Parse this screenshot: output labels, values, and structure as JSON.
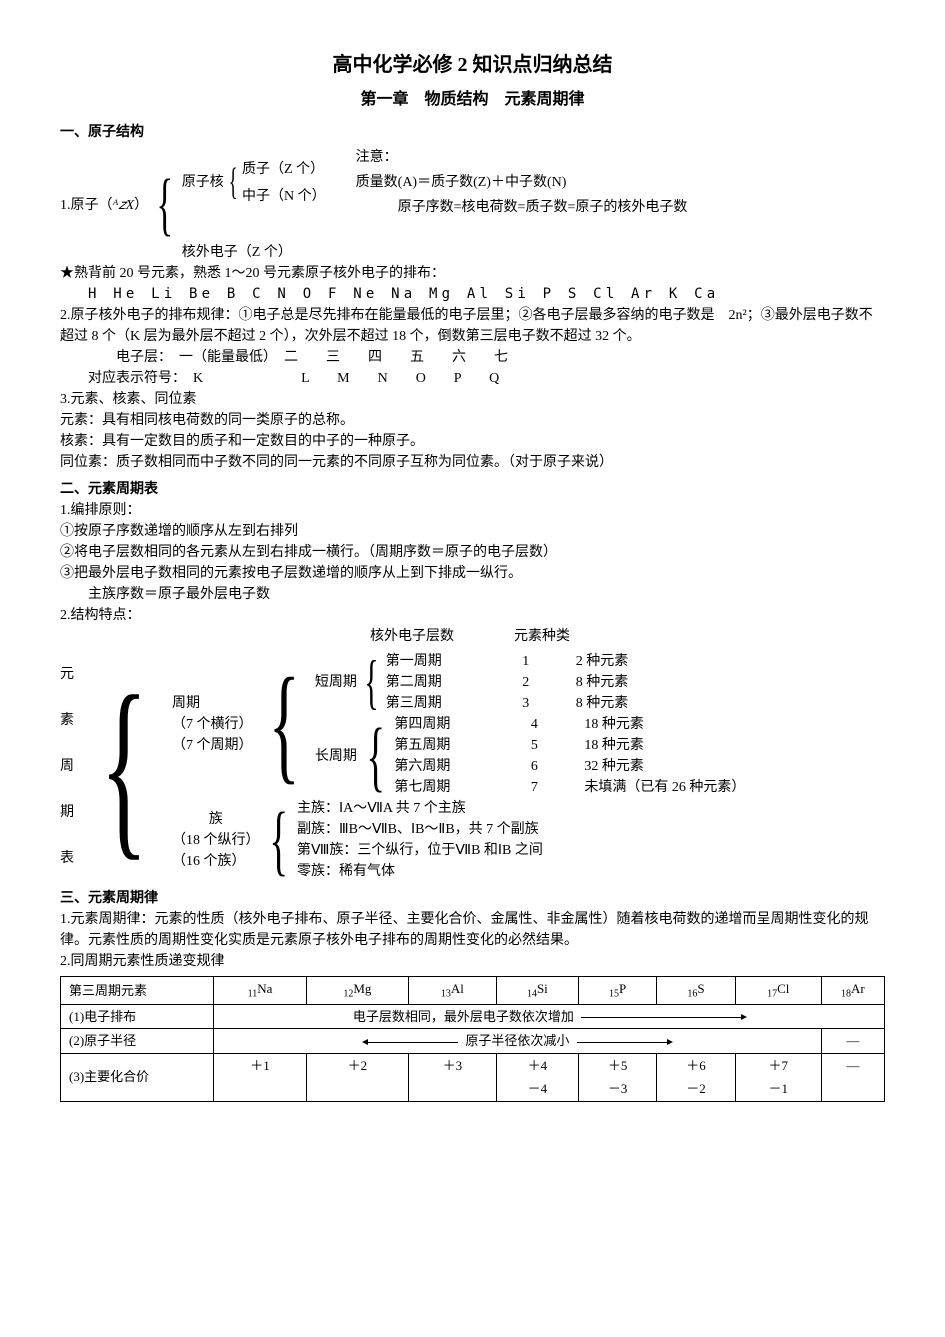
{
  "doc": {
    "title1": "高中化学必修 2 知识点归纳总结",
    "title2": "第一章　物质结构　元素周期律",
    "s1_head": "一、原子结构",
    "atom_label": "1.原子（",
    "atom_symbol": "ᴬ𝑧X",
    "atom_label2": "）",
    "nucleus": "原子核",
    "proton": "质子（Z 个）",
    "neutron": "中子（N 个）",
    "electron": "核外电子（Z 个）",
    "note_label": "注意：",
    "mass_eq": "质量数(A)＝质子数(Z)＋中子数(N)",
    "z_eq": "原子序数=核电荷数=质子数=原子的核外电子数",
    "star_line": "★熟背前 20 号元素，熟悉 1～20 号元素原子核外电子的排布：",
    "elements20": "H  He  Li  Be  B  C  N  O  F  Ne  Na  Mg  Al  Si  P  S  Cl  Ar  K  Ca",
    "rule2": "2.原子核外电子的排布规律：①电子总是尽先排布在能量最低的电子层里；②各电子层最多容纳的电子数是　2n²；③最外层电子数不超过 8 个（K 层为最外层不超过 2 个），次外层不超过 18 个，倒数第三层电子数不超过 32 个。",
    "shell_title": "电子层：　一（能量最低）　二　　三　　四　　五　　六　　七",
    "shell_sym": "对应表示符号：　K　　　　　　　L　　M　　N　　O　　P　　Q",
    "s1_3": "3.元素、核素、同位素",
    "yuansu": "元素：具有相同核电荷数的同一类原子的总称。",
    "hesu": "核素：具有一定数目的质子和一定数目的中子的一种原子。",
    "twsu": "同位素：质子数相同而中子数不同的同一元素的不同原子互称为同位素。（对于原子来说）",
    "s2_head": "二、元素周期表",
    "s2_1": "1.编排原则：",
    "s2_1a": "①按原子序数递增的顺序从左到右排列",
    "s2_1b": "②将电子层数相同的各元素从左到右排成一横行。（周期序数＝原子的电子层数）",
    "s2_1c": "③把最外层电子数相同的元素按电子层数递增的顺序从上到下排成一纵行。",
    "s2_1d": "主族序数＝原子最外层电子数",
    "s2_2": "2.结构特点：",
    "col_h1": "核外电子层数",
    "col_h2": "元素种类",
    "zhouqi": "周期",
    "hengxing": "（7 个横行）",
    "qizhouqi": "（7 个周期）",
    "duan": "短周期",
    "chang": "长周期",
    "p1": "第一周期",
    "p2": "第二周期",
    "p3": "第三周期",
    "p4": "第四周期",
    "p5": "第五周期",
    "p6": "第六周期",
    "p7": "第七周期",
    "n1": "1",
    "n2": "2",
    "n3": "3",
    "n4": "4",
    "n5": "5",
    "n6": "6",
    "n7": "7",
    "k1": "2 种元素",
    "k2": "8 种元素",
    "k3": "8 种元素",
    "k4": "18 种元素",
    "k5": "18 种元素",
    "k6": "32 种元素",
    "k7": "未填满（已有 26 种元素）",
    "zu": "族",
    "zongxing": "（18 个纵行）",
    "zucount": "（16 个族）",
    "zhuzu": "主族：ⅠA～ⅦA 共 7 个主族",
    "fuzu": "副族：ⅢB～ⅦB、ⅠB～ⅡB，共 7 个副族",
    "bazu": "第Ⅷ族：三个纵行，位于ⅦB 和ⅠB 之间",
    "lingzu": "零族：稀有气体",
    "tree_label_chars": [
      "元",
      "素",
      "周",
      "期",
      "表"
    ],
    "s3_head": "三、元素周期律",
    "s3_1": "1.元素周期律：元素的性质（核外电子排布、原子半径、主要化合价、金属性、非金属性）随着核电荷数的递增而呈周期性变化的规律。元素性质的周期性变化实质是元素原子核外电子排布的周期性变化的必然结果。",
    "s3_2": "2.同周期元素性质递变规律",
    "table": {
      "h0": "第三周期元素",
      "cols": [
        "₁₁Na",
        "₁₂Mg",
        "₁₃Al",
        "₁₄Si",
        "₁₅P",
        "₁₆S",
        "₁₇Cl",
        "₁₈Ar"
      ],
      "r1_label": "(1)电子排布",
      "r1_text": "电子层数相同，最外层电子数依次增加",
      "r2_label": "(2)原子半径",
      "r2_text": "原子半径依次减小",
      "r2_dash": "—",
      "r3_label": "(3)主要化合价",
      "r3_top": [
        "＋1",
        "＋2",
        "＋3",
        "＋4",
        "＋5",
        "＋6",
        "＋7",
        "—"
      ],
      "r3_bot": [
        "",
        "",
        "",
        "－4",
        "－3",
        "－2",
        "－1",
        ""
      ]
    }
  },
  "style": {
    "page_bg": "#ffffff",
    "text_color": "#000000",
    "font_size_body": 14,
    "font_size_title1": 20,
    "font_size_title2": 16,
    "table_border": "#000000",
    "arrow_widths": {
      "r1": 480,
      "r2": 380
    }
  }
}
